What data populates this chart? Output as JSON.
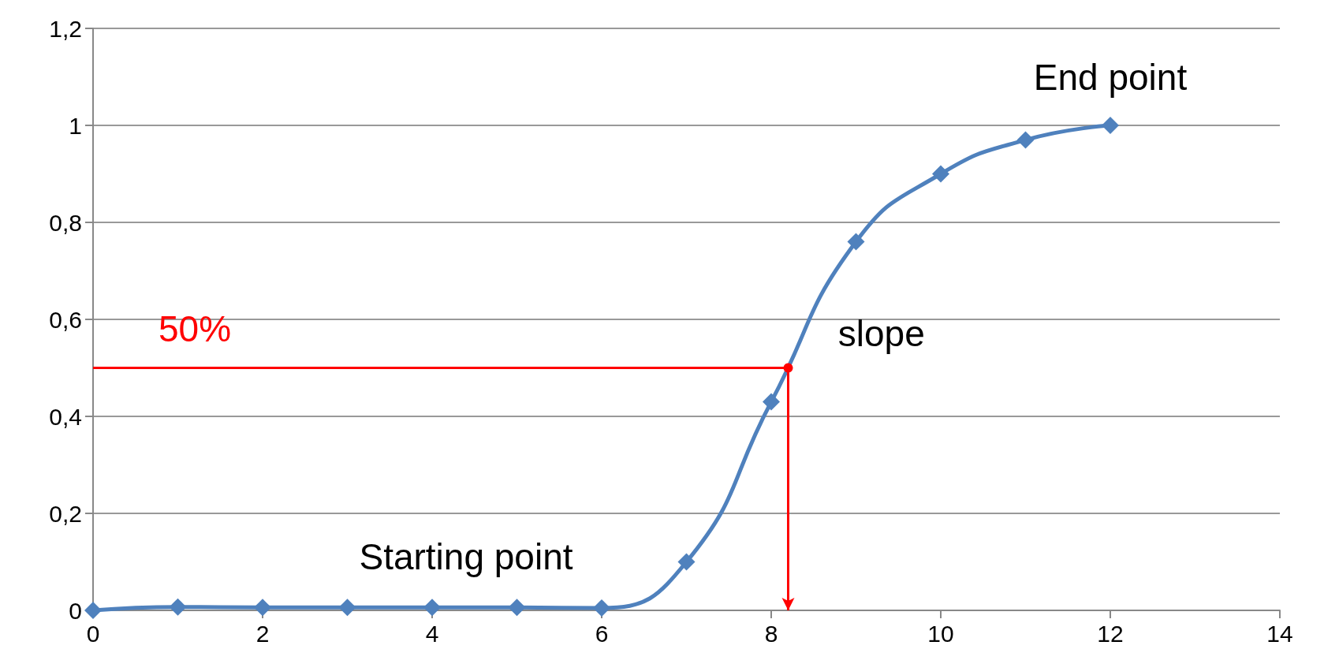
{
  "chart_data": {
    "type": "line",
    "xlim": [
      0,
      14
    ],
    "xticks": [
      0,
      2,
      4,
      6,
      8,
      10,
      12,
      14
    ],
    "ylim": [
      0,
      1.2
    ],
    "yticks": [
      0,
      {
        "value": 0.2,
        "label": "0,2"
      },
      {
        "value": 0.4,
        "label": "0,4"
      },
      {
        "value": 0.6,
        "label": "0,6"
      },
      {
        "value": 0.8,
        "label": "0,8"
      },
      {
        "value": 1,
        "label": "1"
      },
      {
        "value": 1.2,
        "label": "1,2"
      }
    ],
    "grid": "y",
    "series": [
      {
        "color": "#4f81bd",
        "marker": "diamond",
        "x": [
          0,
          1,
          2,
          3,
          4,
          5,
          6,
          7,
          8,
          9,
          10,
          11,
          12
        ],
        "values": [
          0,
          0.007,
          0.006,
          0.006,
          0.006,
          0.006,
          0.005,
          0.1,
          0.43,
          0.76,
          0.9,
          0.97,
          1.0
        ]
      },
      {
        "color": "#ff0000",
        "marker": "none",
        "x": [
          0,
          8.2,
          8.2
        ],
        "values": [
          0.5,
          0.5,
          0
        ]
      }
    ],
    "annotations": [
      "50%",
      "slope",
      "End point",
      "Starting point"
    ]
  }
}
